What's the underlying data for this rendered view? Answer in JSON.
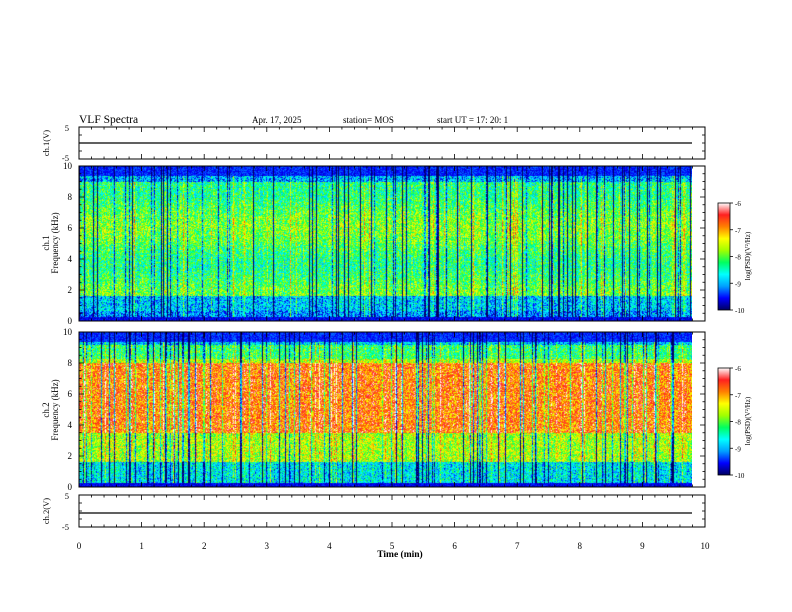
{
  "header": {
    "title": "VLF Spectra",
    "date": "Apr. 17, 2025",
    "station": "station= MOS",
    "start": "start  UT  =    17: 20: 1"
  },
  "chart_data": [
    {
      "type": "line",
      "panel": "ch1-waveform",
      "ylabel": "ch.1(V)",
      "ylim": [
        -5,
        5
      ],
      "yticks": [
        5,
        -5
      ],
      "baseline": -1.5
    },
    {
      "type": "heatmap",
      "panel": "ch1-spectrogram",
      "ylabel_top": "ch.1",
      "ylabel": "Frequency (kHz)",
      "ylim": [
        0,
        10
      ],
      "yticks": [
        0,
        2,
        4,
        6,
        8,
        10
      ],
      "colorbar": {
        "label": "log(PSD)(V²/Hz)",
        "ticks": [
          -6,
          -7,
          -8,
          -9,
          -10
        ],
        "range": [
          -10,
          -6
        ]
      }
    },
    {
      "type": "heatmap",
      "panel": "ch2-spectrogram",
      "ylabel_top": "ch.2",
      "ylabel": "Frequency (kHz)",
      "ylim": [
        0,
        10
      ],
      "yticks": [
        0,
        2,
        4,
        6,
        8,
        10
      ],
      "colorbar": {
        "label": "log(PSD)(V²/Hz)",
        "ticks": [
          -6,
          -7,
          -8,
          -9,
          -10
        ],
        "range": [
          -10,
          -6
        ]
      }
    },
    {
      "type": "line",
      "panel": "ch2-waveform",
      "ylabel": "ch.2(V)",
      "ylim": [
        -5,
        5
      ],
      "yticks": [
        5,
        -5
      ],
      "baseline": -1.5
    }
  ],
  "xaxis": {
    "label": "Time (min)",
    "xlim": [
      0,
      10
    ],
    "ticks": [
      0,
      1,
      2,
      3,
      4,
      5,
      6,
      7,
      8,
      9,
      10
    ],
    "data_end": 9.85
  },
  "colors": {
    "frame": "#000000",
    "colormap": [
      "#000060",
      "#0000ff",
      "#00a0ff",
      "#00ffff",
      "#00ff60",
      "#a0ff00",
      "#ffff00",
      "#ff8000",
      "#ff2020",
      "#ffffff"
    ]
  }
}
